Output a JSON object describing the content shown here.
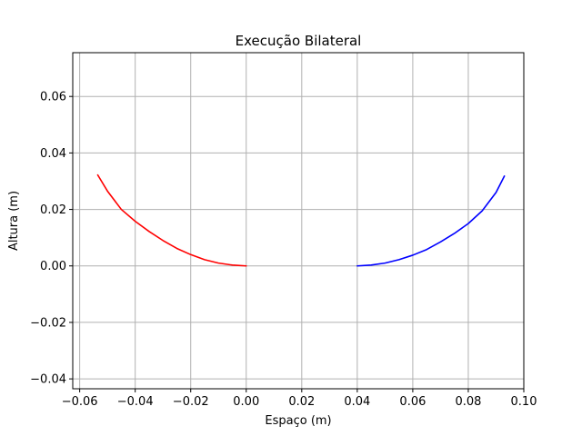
{
  "chart_data": {
    "type": "line",
    "title": "Execução Bilateral",
    "xlabel": "Espaço (m)",
    "ylabel": "Altura (m)",
    "xlim": [
      -0.0625,
      0.1
    ],
    "ylim": [
      -0.0435,
      0.0755
    ],
    "xticks": [
      -0.06,
      -0.04,
      -0.02,
      0.0,
      0.02,
      0.04,
      0.06,
      0.08,
      0.1
    ],
    "xtick_labels": [
      "−0.06",
      "−0.04",
      "−0.02",
      "0.00",
      "0.02",
      "0.04",
      "0.06",
      "0.08",
      "0.10"
    ],
    "yticks": [
      -0.04,
      -0.02,
      0.0,
      0.02,
      0.04,
      0.06
    ],
    "ytick_labels": [
      "−0.04",
      "−0.02",
      "0.00",
      "0.02",
      "0.04",
      "0.06"
    ],
    "grid": true,
    "series": [
      {
        "color": "#ff0000",
        "x": [
          0.0,
          -0.005,
          -0.01,
          -0.015,
          -0.02,
          -0.025,
          -0.03,
          -0.035,
          -0.04,
          -0.045,
          -0.05,
          -0.0535
        ],
        "y": [
          0.0,
          0.0003,
          0.001,
          0.0022,
          0.004,
          0.0062,
          0.009,
          0.0122,
          0.0158,
          0.02,
          0.0265,
          0.0322
        ]
      },
      {
        "color": "#0000ff",
        "x": [
          0.04,
          0.045,
          0.05,
          0.055,
          0.06,
          0.065,
          0.07,
          0.075,
          0.08,
          0.085,
          0.09,
          0.093
        ],
        "y": [
          0.0,
          0.0003,
          0.001,
          0.0022,
          0.0038,
          0.0058,
          0.0085,
          0.0115,
          0.015,
          0.0195,
          0.026,
          0.0318
        ]
      }
    ]
  }
}
